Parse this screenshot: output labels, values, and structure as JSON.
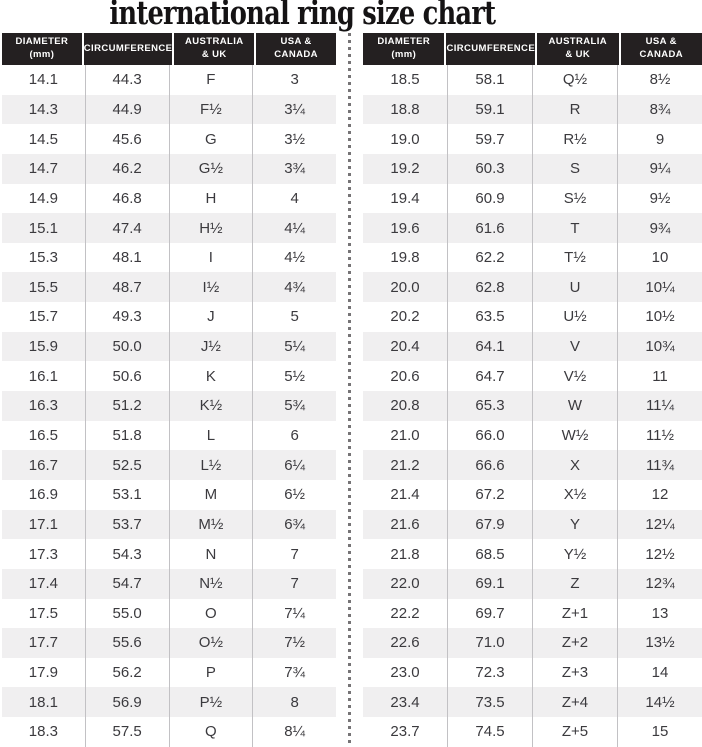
{
  "title": "international ring size chart",
  "colors": {
    "header_bg": "#242021",
    "header_text": "#ffffff",
    "row_stripe": "#f0eff0",
    "row_text": "#3b3a3e",
    "column_separator": "#c2c1c4",
    "divider_dots": "#767476",
    "title_text": "#151314"
  },
  "chart_data": {
    "type": "table",
    "title": "international ring size chart",
    "columns": [
      "DIAMETER (mm)",
      "CIRCUMFERENCE",
      "AUSTRALIA & UK",
      "USA & CANADA"
    ],
    "layout": {
      "panels": "two side-by-side tables",
      "divider": "vertical dotted line",
      "striping": "alternating white / light gray rows"
    },
    "panels": [
      {
        "headers": [
          [
            "DIAMETER",
            "(mm)"
          ],
          [
            "CIRCUMFERENCE",
            ""
          ],
          [
            "AUSTRALIA",
            "& UK"
          ],
          [
            "USA &",
            "CANADA"
          ]
        ],
        "rows": [
          [
            "14.1",
            "44.3",
            "F",
            "3"
          ],
          [
            "14.3",
            "44.9",
            "F½",
            "3¼"
          ],
          [
            "14.5",
            "45.6",
            "G",
            "3½"
          ],
          [
            "14.7",
            "46.2",
            "G½",
            "3¾"
          ],
          [
            "14.9",
            "46.8",
            "H",
            "4"
          ],
          [
            "15.1",
            "47.4",
            "H½",
            "4¼"
          ],
          [
            "15.3",
            "48.1",
            "I",
            "4½"
          ],
          [
            "15.5",
            "48.7",
            "I½",
            "4¾"
          ],
          [
            "15.7",
            "49.3",
            "J",
            "5"
          ],
          [
            "15.9",
            "50.0",
            "J½",
            "5¼"
          ],
          [
            "16.1",
            "50.6",
            "K",
            "5½"
          ],
          [
            "16.3",
            "51.2",
            "K½",
            "5¾"
          ],
          [
            "16.5",
            "51.8",
            "L",
            "6"
          ],
          [
            "16.7",
            "52.5",
            "L½",
            "6¼"
          ],
          [
            "16.9",
            "53.1",
            "M",
            "6½"
          ],
          [
            "17.1",
            "53.7",
            "M½",
            "6¾"
          ],
          [
            "17.3",
            "54.3",
            "N",
            "7"
          ],
          [
            "17.4",
            "54.7",
            "N½",
            "7"
          ],
          [
            "17.5",
            "55.0",
            "O",
            "7¼"
          ],
          [
            "17.7",
            "55.6",
            "O½",
            "7½"
          ],
          [
            "17.9",
            "56.2",
            "P",
            "7¾"
          ],
          [
            "18.1",
            "56.9",
            "P½",
            "8"
          ],
          [
            "18.3",
            "57.5",
            "Q",
            "8¼"
          ]
        ]
      },
      {
        "headers": [
          [
            "DIAMETER",
            "(mm)"
          ],
          [
            "CIRCUMFERENCE",
            ""
          ],
          [
            "AUSTRALIA",
            "& UK"
          ],
          [
            "USA &",
            "CANADA"
          ]
        ],
        "rows": [
          [
            "18.5",
            "58.1",
            "Q½",
            "8½"
          ],
          [
            "18.8",
            "59.1",
            "R",
            "8¾"
          ],
          [
            "19.0",
            "59.7",
            "R½",
            "9"
          ],
          [
            "19.2",
            "60.3",
            "S",
            "9¼"
          ],
          [
            "19.4",
            "60.9",
            "S½",
            "9½"
          ],
          [
            "19.6",
            "61.6",
            "T",
            "9¾"
          ],
          [
            "19.8",
            "62.2",
            "T½",
            "10"
          ],
          [
            "20.0",
            "62.8",
            "U",
            "10¼"
          ],
          [
            "20.2",
            "63.5",
            "U½",
            "10½"
          ],
          [
            "20.4",
            "64.1",
            "V",
            "10¾"
          ],
          [
            "20.6",
            "64.7",
            "V½",
            "11"
          ],
          [
            "20.8",
            "65.3",
            "W",
            "11¼"
          ],
          [
            "21.0",
            "66.0",
            "W½",
            "11½"
          ],
          [
            "21.2",
            "66.6",
            "X",
            "11¾"
          ],
          [
            "21.4",
            "67.2",
            "X½",
            "12"
          ],
          [
            "21.6",
            "67.9",
            "Y",
            "12¼"
          ],
          [
            "21.8",
            "68.5",
            "Y½",
            "12½"
          ],
          [
            "22.0",
            "69.1",
            "Z",
            "12¾"
          ],
          [
            "22.2",
            "69.7",
            "Z+1",
            "13"
          ],
          [
            "22.6",
            "71.0",
            "Z+2",
            "13½"
          ],
          [
            "23.0",
            "72.3",
            "Z+3",
            "14"
          ],
          [
            "23.4",
            "73.5",
            "Z+4",
            "14½"
          ],
          [
            "23.7",
            "74.5",
            "Z+5",
            "15"
          ]
        ]
      }
    ]
  }
}
